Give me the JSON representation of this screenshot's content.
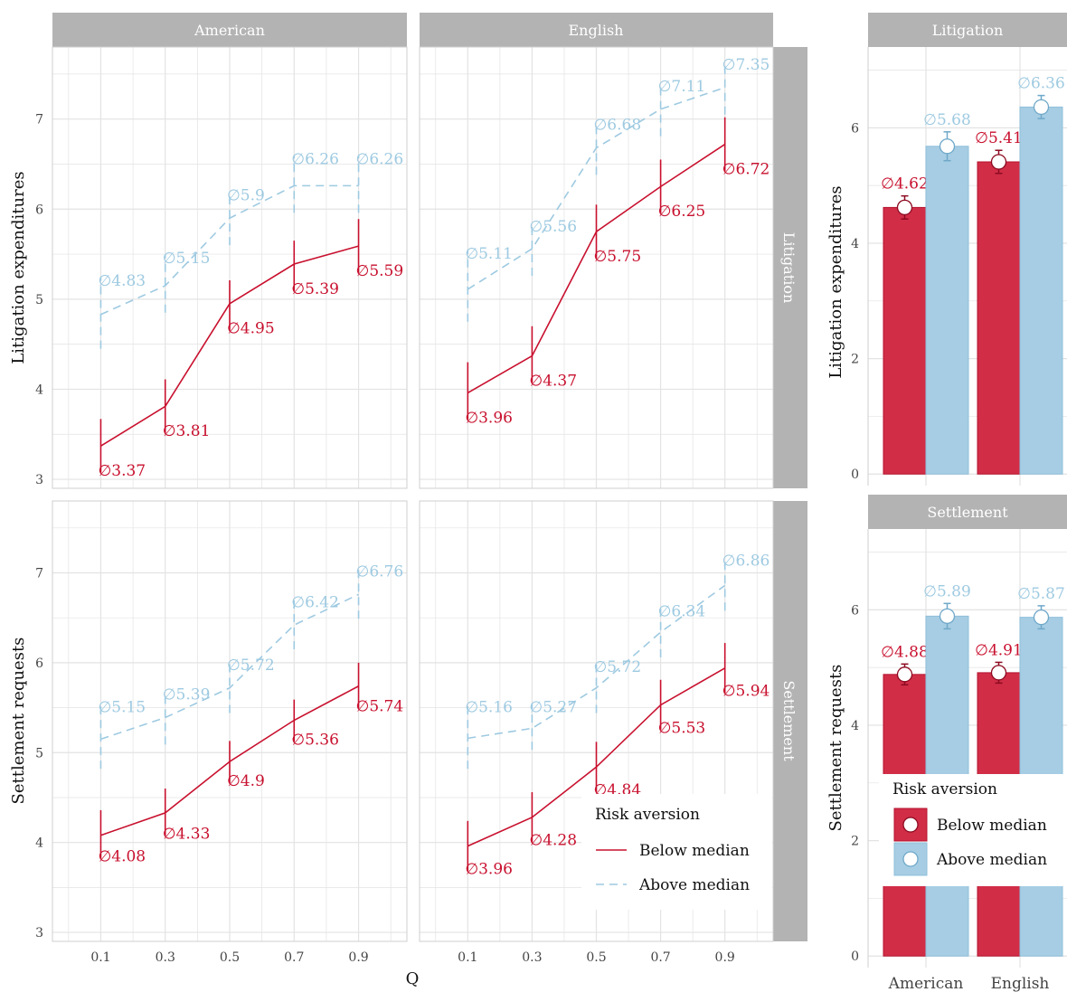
{
  "colors": {
    "below": "#c8102e",
    "above": "#9ecae1",
    "bar_below": "#d12d47",
    "bar_above": "#a6cde3",
    "strip": "#b3b3b3",
    "grid": "#e3e3e3"
  },
  "labels": {
    "x_title": "Q",
    "y_litigation": "Litigation expenditures",
    "y_settlement": "Settlement requests",
    "strip_american": "American",
    "strip_english": "English",
    "strip_litigation": "Litigation",
    "strip_settlement": "Settlement",
    "legend_title": "Risk aversion",
    "legend_below": "Below median",
    "legend_above": "Above median",
    "label_prefix": "∅"
  },
  "chart_data": [
    {
      "type": "line",
      "panel": "American / Litigation",
      "x": [
        0.1,
        0.3,
        0.5,
        0.7,
        0.9
      ],
      "xticks": [
        "0.1",
        "0.3",
        "0.5",
        "0.7",
        "0.9"
      ],
      "xlim": [
        -0.05,
        1.05
      ],
      "ylim": [
        2.9,
        7.8
      ],
      "yticks": [
        3,
        4,
        5,
        6,
        7
      ],
      "series": [
        {
          "name": "Below median",
          "values": [
            3.37,
            3.81,
            4.95,
            5.39,
            5.59
          ],
          "data_labels": [
            "3.37",
            "3.81",
            "4.95",
            "5.39",
            "5.59"
          ],
          "err_low": [
            3.07,
            3.51,
            4.65,
            5.09,
            5.29
          ],
          "err_high": [
            3.67,
            4.11,
            5.21,
            5.65,
            5.89
          ]
        },
        {
          "name": "Above median",
          "values": [
            4.83,
            5.15,
            5.9,
            6.26,
            6.26
          ],
          "data_labels": [
            "4.83",
            "5.15",
            "5.9",
            "6.26",
            "6.26"
          ],
          "err_low": [
            4.45,
            4.85,
            5.6,
            5.96,
            5.96
          ],
          "err_high": [
            5.25,
            5.5,
            6.2,
            6.6,
            6.6
          ]
        }
      ]
    },
    {
      "type": "line",
      "panel": "English / Litigation",
      "x": [
        0.1,
        0.3,
        0.5,
        0.7,
        0.9
      ],
      "xticks": [
        "0.1",
        "0.3",
        "0.5",
        "0.7",
        "0.9"
      ],
      "xlim": [
        -0.05,
        1.05
      ],
      "ylim": [
        2.9,
        7.8
      ],
      "yticks": [
        3,
        4,
        5,
        6,
        7
      ],
      "series": [
        {
          "name": "Below median",
          "values": [
            3.96,
            4.37,
            5.75,
            6.25,
            6.72
          ],
          "data_labels": [
            "3.96",
            "4.37",
            "5.75",
            "6.25",
            "6.72"
          ],
          "err_low": [
            3.66,
            4.07,
            5.45,
            5.95,
            6.42
          ],
          "err_high": [
            4.3,
            4.7,
            6.05,
            6.55,
            7.02
          ]
        },
        {
          "name": "Above median",
          "values": [
            5.11,
            5.56,
            6.68,
            7.11,
            7.35
          ],
          "data_labels": [
            "5.11",
            "5.56",
            "6.68",
            "7.11",
            "7.35"
          ],
          "err_low": [
            4.75,
            5.26,
            6.38,
            6.81,
            7.05
          ],
          "err_high": [
            5.55,
            5.85,
            6.98,
            7.41,
            7.65
          ]
        }
      ]
    },
    {
      "type": "line",
      "panel": "American / Settlement",
      "x": [
        0.1,
        0.3,
        0.5,
        0.7,
        0.9
      ],
      "xticks": [
        "0.1",
        "0.3",
        "0.5",
        "0.7",
        "0.9"
      ],
      "xlim": [
        -0.05,
        1.05
      ],
      "ylim": [
        2.9,
        7.8
      ],
      "yticks": [
        3,
        4,
        5,
        6,
        7
      ],
      "series": [
        {
          "name": "Below median",
          "values": [
            4.08,
            4.33,
            4.9,
            5.36,
            5.74
          ],
          "data_labels": [
            "4.08",
            "4.33",
            "4.9",
            "5.36",
            "5.74"
          ],
          "err_low": [
            3.82,
            4.07,
            4.66,
            5.12,
            5.49
          ],
          "err_high": [
            4.36,
            4.6,
            5.13,
            5.59,
            6.0
          ]
        },
        {
          "name": "Above median",
          "values": [
            5.15,
            5.39,
            5.72,
            6.42,
            6.76
          ],
          "data_labels": [
            "5.15",
            "5.39",
            "5.72",
            "6.42",
            "6.76"
          ],
          "err_low": [
            4.82,
            5.09,
            5.44,
            6.15,
            6.49
          ],
          "err_high": [
            5.55,
            5.69,
            6.02,
            6.72,
            7.06
          ]
        }
      ]
    },
    {
      "type": "line",
      "panel": "English / Settlement",
      "x": [
        0.1,
        0.3,
        0.5,
        0.7,
        0.9
      ],
      "xticks": [
        "0.1",
        "0.3",
        "0.5",
        "0.7",
        "0.9"
      ],
      "xlim": [
        -0.05,
        1.05
      ],
      "ylim": [
        2.9,
        7.8
      ],
      "yticks": [
        3,
        4,
        5,
        6,
        7
      ],
      "series": [
        {
          "name": "Below median",
          "values": [
            3.96,
            4.28,
            4.84,
            5.53,
            5.94
          ],
          "data_labels": [
            "3.96",
            "4.28",
            "4.84",
            "5.53",
            "5.94"
          ],
          "err_low": [
            3.68,
            4.0,
            4.56,
            5.25,
            5.66
          ],
          "err_high": [
            4.24,
            4.56,
            5.12,
            5.81,
            6.22
          ]
        },
        {
          "name": "Above median",
          "values": [
            5.16,
            5.27,
            5.72,
            6.34,
            6.86
          ],
          "data_labels": [
            "5.16",
            "5.27",
            "5.72",
            "6.34",
            "6.86"
          ],
          "err_low": [
            4.82,
            5.03,
            5.44,
            6.06,
            6.58
          ],
          "err_high": [
            5.55,
            5.55,
            6.0,
            6.62,
            7.18
          ]
        }
      ]
    },
    {
      "type": "bar",
      "panel": "Litigation",
      "categories": [
        "American",
        "English"
      ],
      "ylim": [
        -0.2,
        7.4
      ],
      "yticks": [
        0,
        2,
        4,
        6
      ],
      "series": [
        {
          "name": "Below median",
          "values": [
            4.62,
            5.41
          ],
          "data_labels": [
            "4.62",
            "5.41"
          ],
          "err_low": [
            4.42,
            5.21
          ],
          "err_high": [
            4.82,
            5.61
          ]
        },
        {
          "name": "Above median",
          "values": [
            5.68,
            6.36
          ],
          "data_labels": [
            "5.68",
            "6.36"
          ],
          "err_low": [
            5.43,
            6.16
          ],
          "err_high": [
            5.93,
            6.56
          ]
        }
      ]
    },
    {
      "type": "bar",
      "panel": "Settlement",
      "categories": [
        "American",
        "English"
      ],
      "ylim": [
        -0.2,
        7.4
      ],
      "yticks": [
        0,
        2,
        4,
        6
      ],
      "series": [
        {
          "name": "Below median",
          "values": [
            4.88,
            4.91
          ],
          "data_labels": [
            "4.88",
            "4.91"
          ],
          "err_low": [
            4.7,
            4.73
          ],
          "err_high": [
            5.06,
            5.09
          ]
        },
        {
          "name": "Above median",
          "values": [
            5.89,
            5.87
          ],
          "data_labels": [
            "5.89",
            "5.87"
          ],
          "err_low": [
            5.67,
            5.67
          ],
          "err_high": [
            6.11,
            6.07
          ]
        }
      ]
    }
  ]
}
